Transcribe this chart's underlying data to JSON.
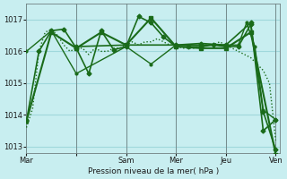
{
  "background_color": "#c8eef0",
  "grid_color": "#a0d8dc",
  "line_color_main": "#1a6b1a",
  "line_color_light": "#2d8b2d",
  "xlabel": "Pression niveau de la mer( hPa )",
  "ylim": [
    1012.8,
    1017.5
  ],
  "yticks": [
    1013,
    1014,
    1015,
    1016,
    1017
  ],
  "day_positions": [
    0,
    48,
    96,
    144,
    192,
    240
  ],
  "day_labels": [
    "Mar",
    "",
    "Sam",
    "Mer",
    "Jeu",
    "Ven"
  ],
  "vline_positions": [
    48,
    96,
    144,
    192,
    240
  ],
  "series": [
    {
      "x": [
        0,
        6,
        12,
        18,
        24,
        30,
        36,
        42,
        48,
        54,
        60,
        66,
        72,
        78,
        84,
        90,
        96,
        102,
        108,
        114,
        120,
        126,
        132,
        138,
        144,
        150,
        156,
        162,
        168,
        174,
        180,
        186,
        192,
        198,
        204,
        210,
        216,
        222,
        228,
        234,
        240
      ],
      "y": [
        1013.6,
        1014.2,
        1016.0,
        1016.6,
        1016.7,
        1016.5,
        1016.2,
        1016.0,
        1016.1,
        1016.1,
        1015.9,
        1016.1,
        1016.0,
        1016.0,
        1016.1,
        1016.1,
        1016.2,
        1016.3,
        1016.2,
        1016.3,
        1016.3,
        1016.4,
        1016.3,
        1016.2,
        1016.2,
        1016.1,
        1016.1,
        1016.1,
        1016.2,
        1016.2,
        1016.2,
        1016.3,
        1016.2,
        1016.1,
        1016.0,
        1015.9,
        1015.8,
        1015.6,
        1015.4,
        1015.0,
        1013.2
      ],
      "style": "dotted",
      "color": "#1a6b1a",
      "lw": 1.0,
      "marker": null
    },
    {
      "x": [
        0,
        12,
        24,
        36,
        48,
        60,
        72,
        84,
        96,
        108,
        120,
        132,
        144,
        156,
        168,
        180,
        192,
        204,
        216,
        228,
        240
      ],
      "y": [
        1013.8,
        1016.0,
        1016.65,
        1016.7,
        1016.1,
        1015.3,
        1016.65,
        1016.05,
        1016.15,
        1017.1,
        1016.9,
        1016.45,
        1016.15,
        1016.15,
        1016.15,
        1016.2,
        1016.15,
        1016.15,
        1016.85,
        1014.1,
        1012.9
      ],
      "style": "solid",
      "color": "#1a6b1a",
      "lw": 1.2,
      "marker": "D",
      "markersize": 2.5
    },
    {
      "x": [
        0,
        24,
        48,
        72,
        96,
        120,
        144,
        168,
        192,
        216,
        240
      ],
      "y": [
        1013.8,
        1016.6,
        1016.1,
        1016.6,
        1016.2,
        1017.05,
        1016.15,
        1016.1,
        1016.1,
        1016.6,
        1012.75
      ],
      "style": "solid",
      "color": "#1a6b1a",
      "lw": 1.5,
      "marker": "s",
      "markersize": 2.5
    },
    {
      "x": [
        48,
        96,
        144,
        168,
        192,
        216,
        228,
        240
      ],
      "y": [
        1016.15,
        1016.2,
        1016.2,
        1016.25,
        1016.2,
        1016.9,
        1013.5,
        1013.85
      ],
      "style": "solid",
      "color": "#1a6b1a",
      "lw": 1.2,
      "marker": "D",
      "markersize": 2.5
    },
    {
      "x": [
        0,
        24,
        48,
        96,
        120,
        144,
        168,
        192,
        204,
        212,
        220,
        228,
        240
      ],
      "y": [
        1016.0,
        1016.65,
        1015.3,
        1016.15,
        1015.6,
        1016.2,
        1016.2,
        1016.2,
        1016.2,
        1016.9,
        1016.15,
        1014.15,
        1013.85
      ],
      "style": "solid",
      "color": "#1a6b1a",
      "lw": 1.0,
      "marker": "o",
      "markersize": 2.0
    }
  ]
}
